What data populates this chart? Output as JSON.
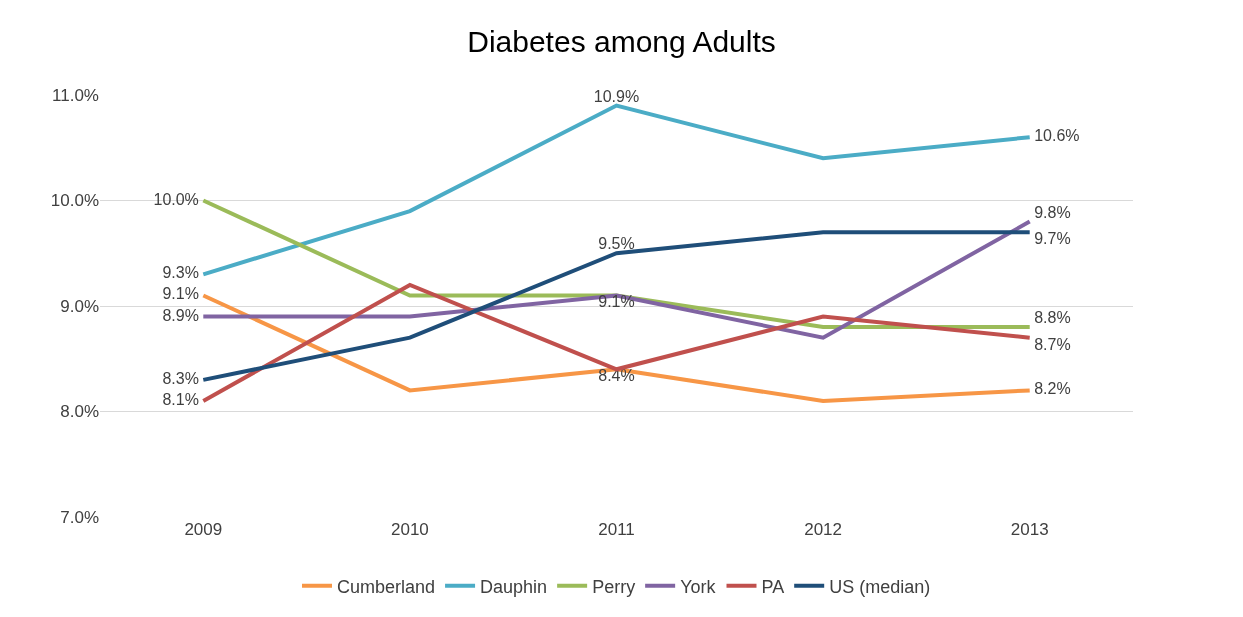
{
  "chart_data": {
    "type": "line",
    "title": "Diabetes among Adults",
    "categories": [
      "2009",
      "2010",
      "2011",
      "2012",
      "2013"
    ],
    "series": [
      {
        "name": "Cumberland",
        "color": "#f79646",
        "values": [
          9.1,
          8.2,
          8.4,
          8.1,
          8.2
        ],
        "value_labels": [
          "9.1%",
          null,
          "8.4%",
          null,
          "8.2%"
        ]
      },
      {
        "name": "Dauphin",
        "color": "#4bacc6",
        "values": [
          9.3,
          9.9,
          10.9,
          10.4,
          10.6
        ],
        "value_labels": [
          "9.3%",
          null,
          "10.9%",
          null,
          "10.6%"
        ]
      },
      {
        "name": "Perry",
        "color": "#9bbb59",
        "values": [
          10.0,
          9.1,
          9.1,
          8.8,
          8.8
        ],
        "value_labels": [
          "10.0%",
          null,
          null,
          null,
          "8.8%"
        ]
      },
      {
        "name": "York",
        "color": "#8064a2",
        "values": [
          8.9,
          8.9,
          9.1,
          8.7,
          9.8
        ],
        "value_labels": [
          "8.9%",
          null,
          "9.1%",
          null,
          "9.8%"
        ]
      },
      {
        "name": "PA",
        "color": "#c0504d",
        "values": [
          8.1,
          9.2,
          8.4,
          8.9,
          8.7
        ],
        "value_labels": [
          "8.1%",
          null,
          null,
          null,
          "8.7%"
        ]
      },
      {
        "name": "US (median)",
        "color": "#1f4e79",
        "values": [
          8.3,
          8.7,
          9.5,
          9.7,
          9.7
        ],
        "value_labels": [
          "8.3%",
          null,
          "9.5%",
          null,
          "9.7%"
        ]
      }
    ],
    "ylim": [
      7.0,
      11.0
    ],
    "yticks": [
      {
        "value": 7.0,
        "label": "7.0%"
      },
      {
        "value": 8.0,
        "label": "8.0%"
      },
      {
        "value": 9.0,
        "label": "9.0%"
      },
      {
        "value": 10.0,
        "label": "10.0%"
      },
      {
        "value": 11.0,
        "label": "11.0%"
      }
    ],
    "grid": "y",
    "legend": "bottom",
    "marker": "none",
    "line_style": "solid"
  }
}
